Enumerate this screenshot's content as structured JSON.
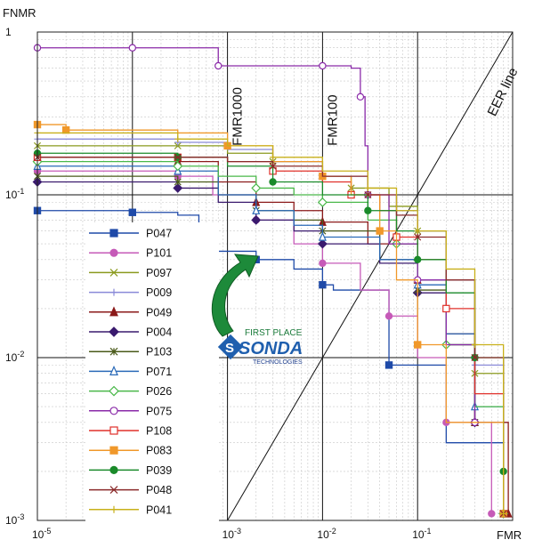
{
  "chart_data": {
    "type": "line",
    "xlabel": "FMR",
    "ylabel": "FNMR",
    "xscale": "log",
    "yscale": "log",
    "xlim": [
      1e-05,
      1
    ],
    "ylim": [
      0.001,
      1
    ],
    "grid": true,
    "legend_position": "lower-left",
    "x_ticks": [
      {
        "value": 1e-05,
        "label": "10-5"
      },
      {
        "value": 0.001,
        "label": "10-3"
      },
      {
        "value": 0.01,
        "label": "10-2"
      },
      {
        "value": 0.1,
        "label": "10-1"
      }
    ],
    "y_ticks": [
      {
        "value": 1,
        "label": "1"
      },
      {
        "value": 0.1,
        "label": "10-1"
      },
      {
        "value": 0.01,
        "label": "10-2"
      },
      {
        "value": 0.001,
        "label": "10-3"
      }
    ],
    "reference_lines": [
      {
        "label": "FMR1000",
        "x": 0.001
      },
      {
        "label": "FMR100",
        "x": 0.01
      },
      {
        "label": "EER line",
        "diagonal": true
      }
    ],
    "annotation": {
      "line1": "FIRST PLACE",
      "line2": "SONDA",
      "line3": "TECHNOLOGIES"
    },
    "series": [
      {
        "name": "P047",
        "color": "#1f4aa8",
        "marker": "square-filled",
        "points": [
          [
            1e-05,
            0.08
          ],
          [
            0.0001,
            0.078
          ],
          [
            0.0003,
            0.075
          ],
          [
            0.0005,
            0.06
          ],
          [
            0.0007,
            0.045
          ],
          [
            0.002,
            0.04
          ],
          [
            0.005,
            0.035
          ],
          [
            0.01,
            0.028
          ],
          [
            0.013,
            0.026
          ],
          [
            0.05,
            0.009
          ],
          [
            0.2,
            0.003
          ],
          [
            0.8,
            0.0011
          ]
        ]
      },
      {
        "name": "P101",
        "color": "#c65ab8",
        "marker": "circle-filled",
        "points": [
          [
            1e-05,
            0.14
          ],
          [
            0.0003,
            0.13
          ],
          [
            0.0007,
            0.1
          ],
          [
            0.002,
            0.07
          ],
          [
            0.005,
            0.05
          ],
          [
            0.01,
            0.038
          ],
          [
            0.025,
            0.026
          ],
          [
            0.05,
            0.018
          ],
          [
            0.1,
            0.01
          ],
          [
            0.2,
            0.004
          ],
          [
            0.6,
            0.0011
          ]
        ]
      },
      {
        "name": "P097",
        "color": "#8a9a1e",
        "marker": "x",
        "points": [
          [
            1e-05,
            0.2
          ],
          [
            0.0003,
            0.2
          ],
          [
            0.001,
            0.18
          ],
          [
            0.003,
            0.16
          ],
          [
            0.01,
            0.13
          ],
          [
            0.02,
            0.11
          ],
          [
            0.05,
            0.085
          ],
          [
            0.1,
            0.06
          ],
          [
            0.2,
            0.03
          ],
          [
            0.4,
            0.008
          ],
          [
            0.8,
            0.0011
          ]
        ]
      },
      {
        "name": "P009",
        "color": "#8a8ad8",
        "marker": "plus",
        "points": [
          [
            1e-05,
            0.22
          ],
          [
            0.0003,
            0.21
          ],
          [
            0.001,
            0.19
          ],
          [
            0.003,
            0.16
          ],
          [
            0.01,
            0.13
          ],
          [
            0.03,
            0.1
          ],
          [
            0.06,
            0.08
          ],
          [
            0.1,
            0.06
          ],
          [
            0.2,
            0.03
          ],
          [
            0.4,
            0.009
          ],
          [
            0.8,
            0.0011
          ]
        ]
      },
      {
        "name": "P049",
        "color": "#8b1a1a",
        "marker": "triangle-filled",
        "points": [
          [
            1e-05,
            0.17
          ],
          [
            0.0003,
            0.16
          ],
          [
            0.0008,
            0.12
          ],
          [
            0.002,
            0.09
          ],
          [
            0.005,
            0.08
          ],
          [
            0.01,
            0.068
          ],
          [
            0.03,
            0.05
          ],
          [
            0.1,
            0.03
          ],
          [
            0.2,
            0.014
          ],
          [
            0.4,
            0.004
          ],
          [
            0.9,
            0.0011
          ]
        ]
      },
      {
        "name": "P004",
        "color": "#3a1a6e",
        "marker": "diamond-filled",
        "points": [
          [
            1e-05,
            0.12
          ],
          [
            0.0003,
            0.11
          ],
          [
            0.0008,
            0.09
          ],
          [
            0.002,
            0.07
          ],
          [
            0.005,
            0.06
          ],
          [
            0.01,
            0.05
          ],
          [
            0.04,
            0.038
          ],
          [
            0.1,
            0.025
          ],
          [
            0.2,
            0.012
          ],
          [
            0.4,
            0.004
          ],
          [
            0.8,
            0.0011
          ]
        ]
      },
      {
        "name": "P103",
        "color": "#4a5a1a",
        "marker": "asterisk",
        "points": [
          [
            1e-05,
            0.13
          ],
          [
            0.0003,
            0.12
          ],
          [
            0.0008,
            0.1
          ],
          [
            0.002,
            0.08
          ],
          [
            0.005,
            0.07
          ],
          [
            0.01,
            0.06
          ],
          [
            0.04,
            0.04
          ],
          [
            0.1,
            0.026
          ],
          [
            0.2,
            0.012
          ],
          [
            0.4,
            0.004
          ],
          [
            0.8,
            0.0011
          ]
        ]
      },
      {
        "name": "P071",
        "color": "#2a6ab8",
        "marker": "triangle-open",
        "points": [
          [
            1e-05,
            0.15
          ],
          [
            0.0003,
            0.14
          ],
          [
            0.0008,
            0.1
          ],
          [
            0.002,
            0.08
          ],
          [
            0.005,
            0.065
          ],
          [
            0.01,
            0.055
          ],
          [
            0.04,
            0.04
          ],
          [
            0.1,
            0.028
          ],
          [
            0.2,
            0.014
          ],
          [
            0.4,
            0.005
          ],
          [
            0.8,
            0.0011
          ]
        ]
      },
      {
        "name": "P026",
        "color": "#4ab84a",
        "marker": "diamond-open",
        "points": [
          [
            1e-05,
            0.16
          ],
          [
            0.0003,
            0.15
          ],
          [
            0.0008,
            0.13
          ],
          [
            0.002,
            0.11
          ],
          [
            0.005,
            0.1
          ],
          [
            0.01,
            0.09
          ],
          [
            0.03,
            0.07
          ],
          [
            0.06,
            0.05
          ],
          [
            0.1,
            0.03
          ],
          [
            0.2,
            0.012
          ],
          [
            0.4,
            0.005
          ],
          [
            0.8,
            0.0011
          ]
        ]
      },
      {
        "name": "P075",
        "color": "#8a2aa8",
        "marker": "circle-open",
        "points": [
          [
            1e-05,
            0.8
          ],
          [
            0.0001,
            0.8
          ],
          [
            0.0005,
            0.8
          ],
          [
            0.0008,
            0.62
          ],
          [
            0.005,
            0.62
          ],
          [
            0.01,
            0.62
          ],
          [
            0.02,
            0.6
          ],
          [
            0.025,
            0.4
          ],
          [
            0.028,
            0.2
          ],
          [
            0.03,
            0.1
          ],
          [
            0.05,
            0.05
          ],
          [
            0.1,
            0.03
          ],
          [
            0.2,
            0.012
          ],
          [
            0.4,
            0.004
          ],
          [
            0.8,
            0.0011
          ]
        ]
      },
      {
        "name": "P108",
        "color": "#e0302a",
        "marker": "square-open",
        "points": [
          [
            1e-05,
            0.17
          ],
          [
            0.0003,
            0.17
          ],
          [
            0.001,
            0.16
          ],
          [
            0.003,
            0.14
          ],
          [
            0.01,
            0.12
          ],
          [
            0.02,
            0.1
          ],
          [
            0.04,
            0.08
          ],
          [
            0.06,
            0.055
          ],
          [
            0.1,
            0.04
          ],
          [
            0.2,
            0.02
          ],
          [
            0.4,
            0.006
          ],
          [
            0.8,
            0.0011
          ]
        ]
      },
      {
        "name": "P083",
        "color": "#f0982a",
        "marker": "square-filled",
        "points": [
          [
            1e-05,
            0.27
          ],
          [
            2e-05,
            0.25
          ],
          [
            0.0003,
            0.24
          ],
          [
            0.001,
            0.2
          ],
          [
            0.003,
            0.16
          ],
          [
            0.01,
            0.13
          ],
          [
            0.02,
            0.1
          ],
          [
            0.04,
            0.06
          ],
          [
            0.06,
            0.03
          ],
          [
            0.1,
            0.012
          ],
          [
            0.2,
            0.004
          ],
          [
            0.8,
            0.0011
          ]
        ]
      },
      {
        "name": "P039",
        "color": "#1a8a2a",
        "marker": "circle-filled",
        "points": [
          [
            1e-05,
            0.18
          ],
          [
            0.0003,
            0.17
          ],
          [
            0.001,
            0.15
          ],
          [
            0.003,
            0.12
          ],
          [
            0.01,
            0.1
          ],
          [
            0.03,
            0.08
          ],
          [
            0.06,
            0.06
          ],
          [
            0.1,
            0.04
          ],
          [
            0.2,
            0.025
          ],
          [
            0.4,
            0.01
          ],
          [
            0.8,
            0.002
          ]
        ]
      },
      {
        "name": "P048",
        "color": "#8a2a2a",
        "marker": "x",
        "points": [
          [
            1e-05,
            0.17
          ],
          [
            0.0003,
            0.17
          ],
          [
            0.001,
            0.16
          ],
          [
            0.003,
            0.15
          ],
          [
            0.01,
            0.13
          ],
          [
            0.03,
            0.1
          ],
          [
            0.06,
            0.075
          ],
          [
            0.1,
            0.055
          ],
          [
            0.2,
            0.03
          ],
          [
            0.4,
            0.01
          ],
          [
            0.8,
            0.0011
          ]
        ]
      },
      {
        "name": "P041",
        "color": "#c8b01a",
        "marker": "plus",
        "points": [
          [
            1e-05,
            0.24
          ],
          [
            0.0003,
            0.22
          ],
          [
            0.001,
            0.2
          ],
          [
            0.003,
            0.17
          ],
          [
            0.01,
            0.14
          ],
          [
            0.03,
            0.11
          ],
          [
            0.06,
            0.08
          ],
          [
            0.1,
            0.06
          ],
          [
            0.2,
            0.035
          ],
          [
            0.4,
            0.012
          ],
          [
            0.8,
            0.0011
          ]
        ]
      }
    ]
  }
}
